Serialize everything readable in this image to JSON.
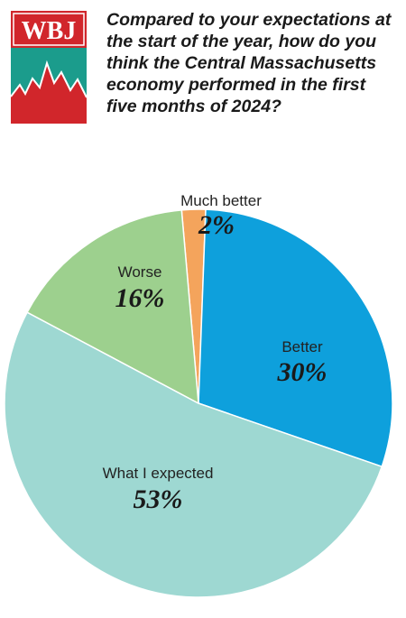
{
  "logo": {
    "text": "WBJ"
  },
  "question": "Compared to your expectations at the start of the year, how do you think the Central Massachusetts economy performed in the first five months of 2024?",
  "chart_data": {
    "type": "pie",
    "start_angle_deg": -5,
    "direction": "clockwise",
    "slices": [
      {
        "label": "Much better",
        "value": 2,
        "value_label": "2%",
        "color": "#f4a45c"
      },
      {
        "label": "Better",
        "value": 30,
        "value_label": "30%",
        "color": "#0ea0dc"
      },
      {
        "label": "What I expected",
        "value": 53,
        "value_label": "53%",
        "color": "#9ed8d2"
      },
      {
        "label": "Worse",
        "value": 16,
        "value_label": "16%",
        "color": "#9dd08e"
      }
    ]
  }
}
